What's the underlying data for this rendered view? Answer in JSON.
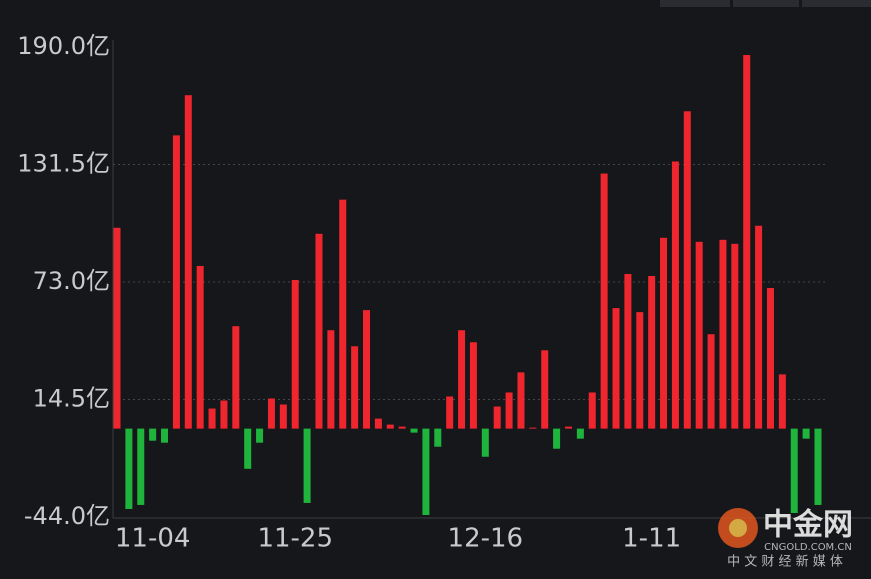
{
  "chart_data": {
    "type": "bar",
    "categories": [
      null,
      null,
      null,
      "11-04",
      null,
      null,
      null,
      null,
      null,
      null,
      null,
      null,
      null,
      null,
      null,
      "11-25",
      null,
      null,
      null,
      null,
      null,
      null,
      null,
      null,
      null,
      null,
      null,
      null,
      null,
      null,
      null,
      "12-16",
      null,
      null,
      null,
      null,
      null,
      null,
      null,
      null,
      null,
      null,
      null,
      null,
      null,
      "1-11",
      null,
      null,
      null,
      null,
      null,
      null,
      null,
      null,
      null,
      null,
      null,
      null,
      null,
      null
    ],
    "values": [
      100,
      -40,
      -38,
      -6,
      -7,
      146,
      166,
      81,
      10,
      14,
      51,
      -20,
      -7,
      15,
      12,
      74,
      -37,
      97,
      49,
      114,
      41,
      59,
      5,
      2,
      1,
      -2,
      -43,
      -9,
      16,
      49,
      43,
      -14,
      11,
      18,
      28,
      0.5,
      39,
      -10,
      1,
      -5,
      18,
      127,
      60,
      77,
      58,
      76,
      95,
      133,
      158,
      93,
      47,
      94,
      92,
      186,
      101,
      70,
      27,
      -42,
      -5,
      -38
    ],
    "colors": {
      "positive": "#f0262e",
      "negative": "#1fb53c"
    },
    "ylim": [
      -44,
      190
    ],
    "yticks": [
      {
        "value": 190,
        "label": "190.0亿"
      },
      {
        "value": 131.5,
        "label": "131.5亿"
      },
      {
        "value": 73,
        "label": "73.0亿"
      },
      {
        "value": 14.5,
        "label": "14.5亿"
      },
      {
        "value": -44,
        "label": "-44.0亿"
      }
    ],
    "grid": true
  },
  "watermark": {
    "brand": "中金网",
    "domain": "CNGOLD.COM.CN",
    "slogan": "中 文 财 经 新 媒 体"
  }
}
